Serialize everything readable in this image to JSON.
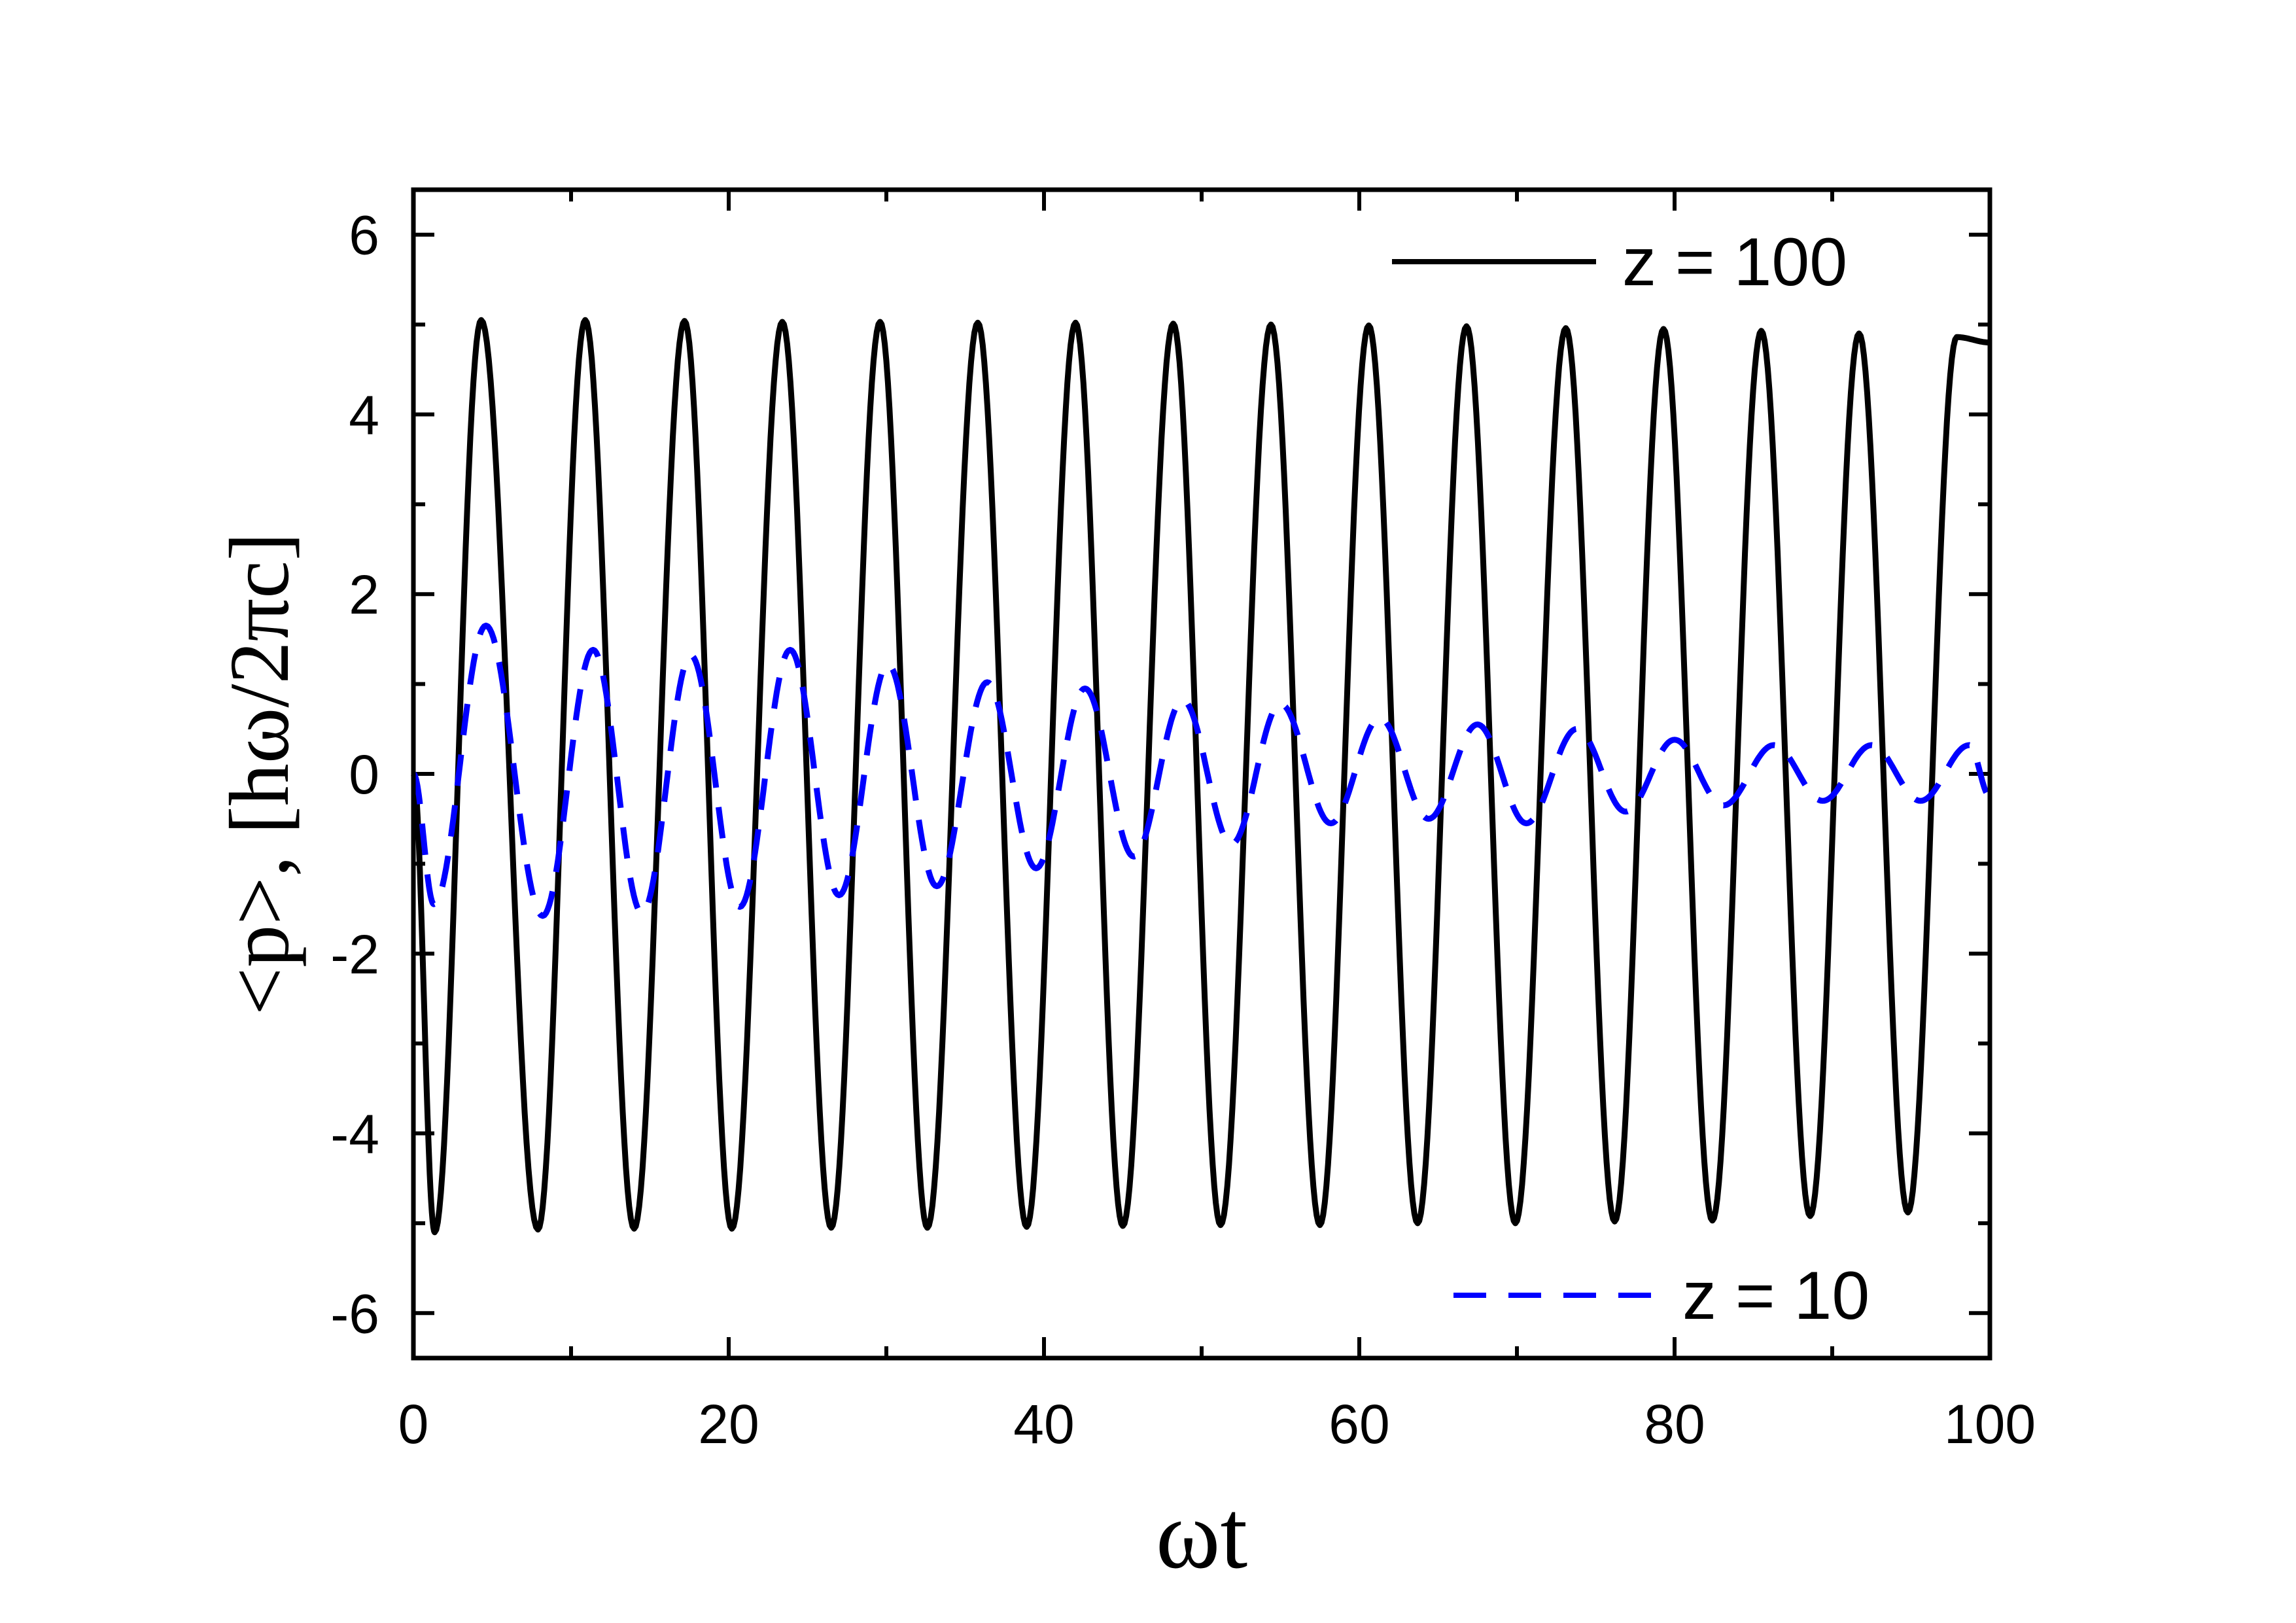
{
  "chart_data": {
    "type": "line",
    "xlabel": "ωt",
    "ylabel": "<p>, [hω/2πc]",
    "xlim": [
      0,
      100
    ],
    "ylim": [
      -6.5,
      6.5
    ],
    "xticks": [
      0,
      20,
      40,
      60,
      80,
      100
    ],
    "yticks": [
      -6,
      -4,
      -2,
      0,
      2,
      4,
      6
    ],
    "grid": false,
    "legend": "top-right and bottom-right",
    "series": [
      {
        "name": "z = 100",
        "color": "#000000",
        "style": "solid",
        "description_points": {
          "x": [
            0,
            1.35,
            4.3,
            7.9,
            10.9,
            14.0,
            17.2,
            20.2,
            23.4,
            26.5,
            29.6,
            32.6,
            35.8,
            38.9,
            42.0,
            45.0,
            48.2,
            51.2,
            54.4,
            57.5,
            60.6,
            63.7,
            66.8,
            69.9,
            73.1,
            76.2,
            79.3,
            82.4,
            85.5,
            88.6,
            91.7,
            94.8,
            97.9,
            100
          ],
          "y": [
            0,
            -5.1,
            5.05,
            -5.07,
            5.05,
            -5.06,
            5.04,
            -5.06,
            5.03,
            -5.05,
            5.03,
            -5.05,
            5.02,
            -5.04,
            5.02,
            -5.03,
            5.01,
            -5.02,
            5.0,
            -5.02,
            4.99,
            -5.0,
            4.98,
            -5.0,
            4.96,
            -4.98,
            4.95,
            -4.97,
            4.93,
            -4.92,
            4.9,
            -4.88,
            4.86,
            4.8
          ]
        }
      },
      {
        "name": "z = 10",
        "color": "#0000ff",
        "style": "dashed",
        "description_points": {
          "x": [
            0,
            1.3,
            4.6,
            8.2,
            11.4,
            14.5,
            17.6,
            20.7,
            23.9,
            27.0,
            30.1,
            33.2,
            36.4,
            39.5,
            42.6,
            45.7,
            48.8,
            51.9,
            55.0,
            58.2,
            61.3,
            64.4,
            67.5,
            70.6,
            73.8,
            76.9,
            80.0,
            83.1,
            86.3,
            89.4,
            92.5,
            95.6,
            98.7,
            100
          ],
          "y": [
            0,
            -1.45,
            1.65,
            -1.58,
            1.38,
            -1.55,
            1.32,
            -1.48,
            1.38,
            -1.35,
            1.22,
            -1.25,
            1.02,
            -1.05,
            0.95,
            -0.92,
            0.82,
            -0.78,
            0.78,
            -0.55,
            0.62,
            -0.5,
            0.55,
            -0.55,
            0.5,
            -0.42,
            0.38,
            -0.35,
            0.32,
            -0.3,
            0.32,
            -0.3,
            0.32,
            -0.25
          ]
        }
      }
    ]
  }
}
